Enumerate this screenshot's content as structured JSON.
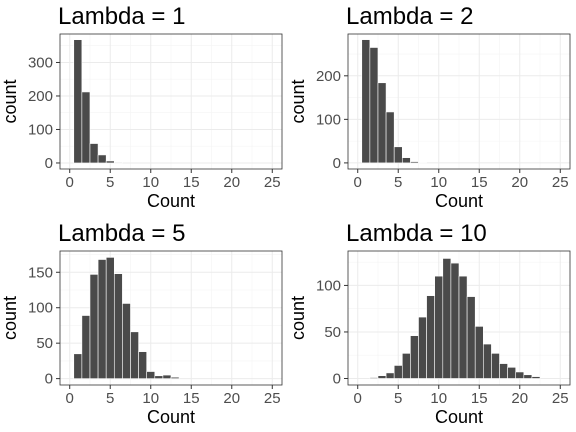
{
  "chart_data": [
    {
      "type": "bar",
      "title": "Lambda = 1",
      "xlabel": "Count",
      "ylabel": "count",
      "xlim": [
        -1.2,
        26.2
      ],
      "ylim": [
        -18,
        385
      ],
      "xticks": [
        0,
        5,
        10,
        15,
        20,
        25
      ],
      "yticks": [
        0,
        100,
        200,
        300
      ],
      "bin_width": 1,
      "categories": [
        1,
        2,
        3,
        4,
        5,
        6
      ],
      "values": [
        368,
        212,
        58,
        24,
        6,
        2
      ],
      "grid": true
    },
    {
      "type": "bar",
      "title": "Lambda = 2",
      "xlabel": "Count",
      "ylabel": "count",
      "xlim": [
        -1.2,
        26.2
      ],
      "ylim": [
        -14,
        296
      ],
      "xticks": [
        0,
        5,
        10,
        15,
        20,
        25
      ],
      "yticks": [
        0,
        100,
        200
      ],
      "bin_width": 1,
      "categories": [
        1,
        2,
        3,
        4,
        5,
        6,
        7,
        8
      ],
      "values": [
        283,
        265,
        184,
        117,
        37,
        12,
        3,
        1
      ],
      "grid": true
    },
    {
      "type": "bar",
      "title": "Lambda = 5",
      "xlabel": "Count",
      "ylabel": "count",
      "xlim": [
        -1.2,
        26.2
      ],
      "ylim": [
        -9,
        180
      ],
      "xticks": [
        0,
        5,
        10,
        15,
        20,
        25
      ],
      "yticks": [
        0,
        50,
        100,
        150
      ],
      "bin_width": 1,
      "categories": [
        1,
        2,
        3,
        4,
        5,
        6,
        7,
        8,
        9,
        10,
        11,
        12,
        13
      ],
      "values": [
        35,
        89,
        147,
        168,
        171,
        148,
        106,
        66,
        38,
        10,
        4,
        5,
        2
      ],
      "grid": true
    },
    {
      "type": "bar",
      "title": "Lambda = 10",
      "xlabel": "Count",
      "ylabel": "count",
      "xlim": [
        -1.2,
        26.2
      ],
      "ylim": [
        -7,
        137
      ],
      "xticks": [
        0,
        5,
        10,
        15,
        20,
        25
      ],
      "yticks": [
        0,
        50,
        100
      ],
      "bin_width": 1,
      "categories": [
        2,
        3,
        4,
        5,
        6,
        7,
        8,
        9,
        10,
        11,
        12,
        13,
        14,
        15,
        16,
        17,
        18,
        19,
        20,
        21,
        22
      ],
      "values": [
        1,
        3,
        6,
        14,
        27,
        46,
        66,
        89,
        110,
        129,
        124,
        110,
        88,
        56,
        37,
        27,
        16,
        12,
        7,
        4,
        2
      ],
      "grid": true
    }
  ]
}
